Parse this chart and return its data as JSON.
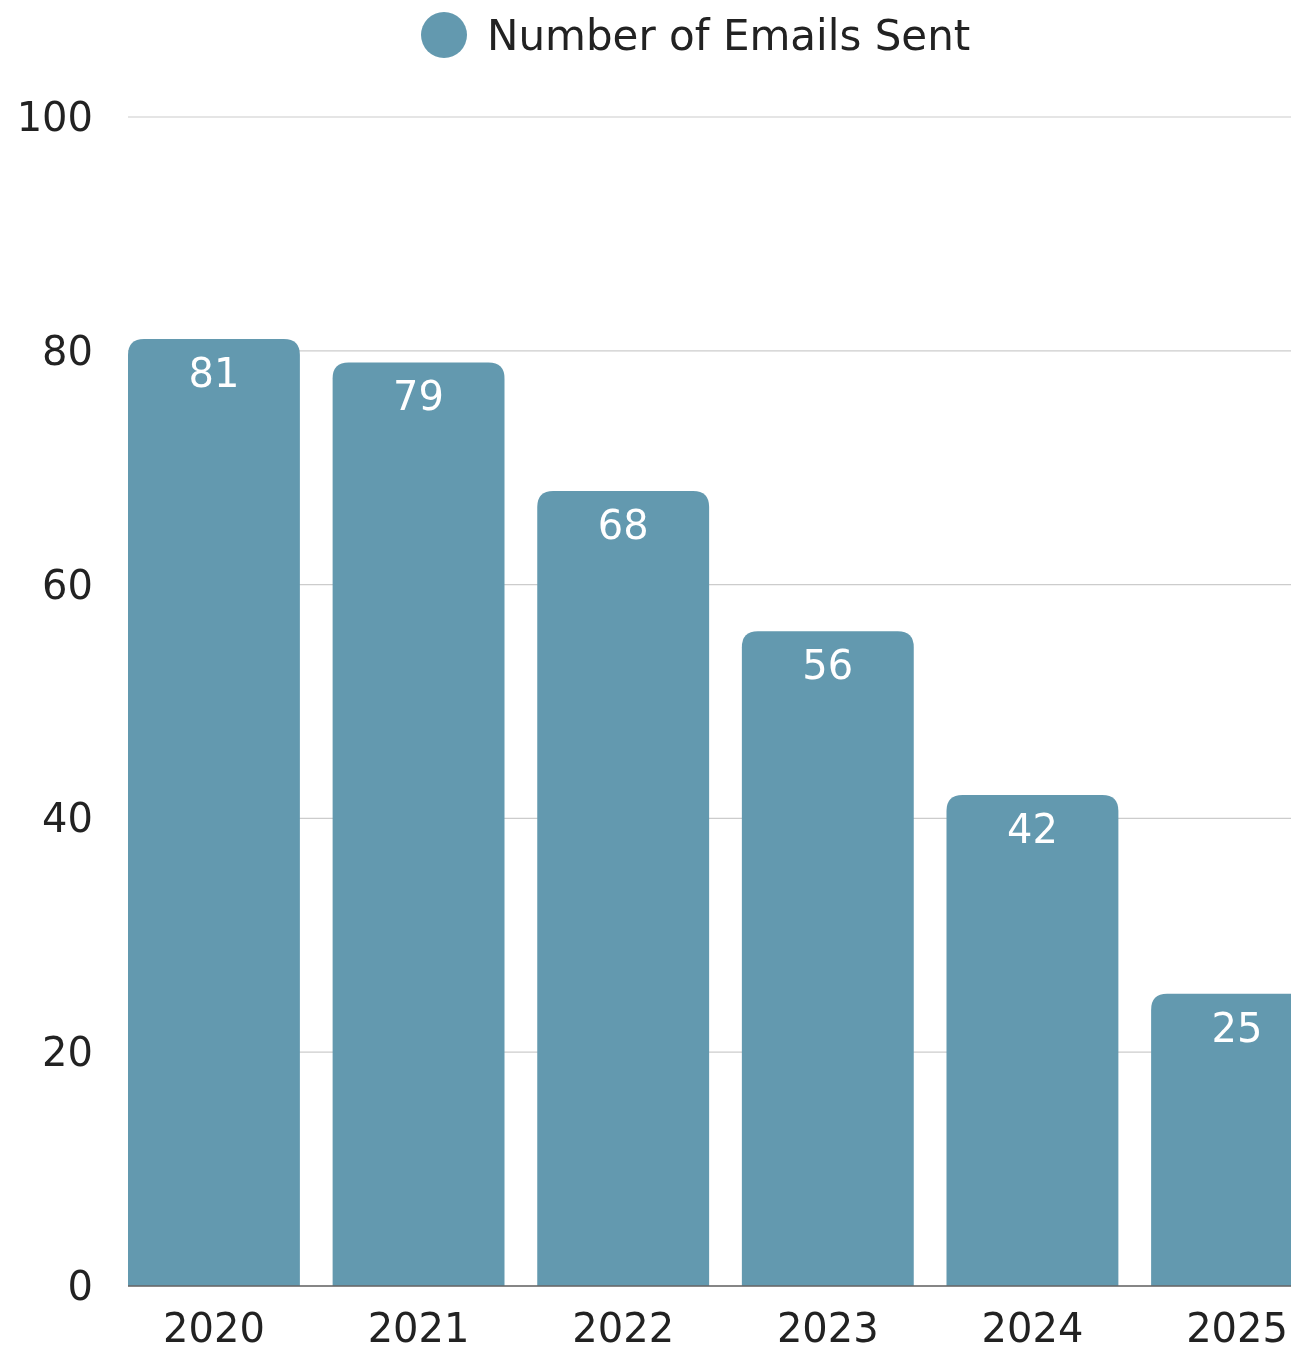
{
  "chart_data": {
    "type": "bar",
    "categories": [
      "2020",
      "2021",
      "2022",
      "2023",
      "2024",
      "2025"
    ],
    "series": [
      {
        "name": "Number of Emails Sent",
        "color": "#6399af",
        "values": [
          81,
          79,
          68,
          56,
          42,
          25
        ]
      }
    ],
    "ylim": [
      0,
      100
    ],
    "yticks": [
      0,
      20,
      40,
      60,
      80,
      100
    ],
    "grid": "y",
    "legend": "top",
    "data_labels": true
  }
}
